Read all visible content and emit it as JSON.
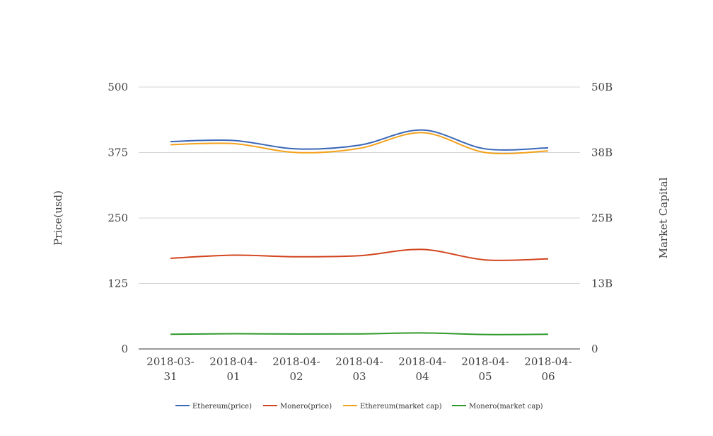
{
  "chart_data": {
    "type": "line",
    "title": "",
    "categories": [
      "2018-03-31",
      "2018-04-01",
      "2018-04-02",
      "2018-04-03",
      "2018-04-04",
      "2018-04-05",
      "2018-04-06"
    ],
    "category_lines": [
      [
        "2018-03-",
        "31"
      ],
      [
        "2018-04-",
        "01"
      ],
      [
        "2018-04-",
        "02"
      ],
      [
        "2018-04-",
        "03"
      ],
      [
        "2018-04-",
        "04"
      ],
      [
        "2018-04-",
        "05"
      ],
      [
        "2018-04-",
        "06"
      ]
    ],
    "y_left": {
      "label": "Price(usd)",
      "range": [
        0,
        500
      ],
      "ticks": [
        0,
        125,
        250,
        375,
        500
      ],
      "tick_labels": [
        "0",
        "125",
        "250",
        "375",
        "500"
      ]
    },
    "y_right": {
      "label": "Market Capital",
      "range": [
        0,
        50000000000
      ],
      "ticks": [
        0,
        12500000000,
        25000000000,
        37500000000,
        50000000000
      ],
      "tick_labels": [
        "0",
        "13B",
        "25B",
        "38B",
        "50B"
      ]
    },
    "grid": true,
    "legend_position": "bottom",
    "series": [
      {
        "name": "Ethereum(price)",
        "axis": "left",
        "color": "#3a67b7",
        "values": [
          396,
          398,
          382,
          389,
          418,
          382,
          384
        ]
      },
      {
        "name": "Monero(price)",
        "axis": "left",
        "color": "#d2451e",
        "values": [
          173,
          179,
          176,
          178,
          190,
          170,
          172
        ]
      },
      {
        "name": "Ethereum(market cap)",
        "axis": "right",
        "color": "#f3a21d",
        "values": [
          39000000000,
          39200000000,
          37500000000,
          38300000000,
          41300000000,
          37500000000,
          37800000000
        ]
      },
      {
        "name": "Monero(market cap)",
        "axis": "right",
        "color": "#2f9a2a",
        "values": [
          2800000000,
          2900000000,
          2850000000,
          2880000000,
          3050000000,
          2750000000,
          2800000000
        ]
      }
    ]
  }
}
